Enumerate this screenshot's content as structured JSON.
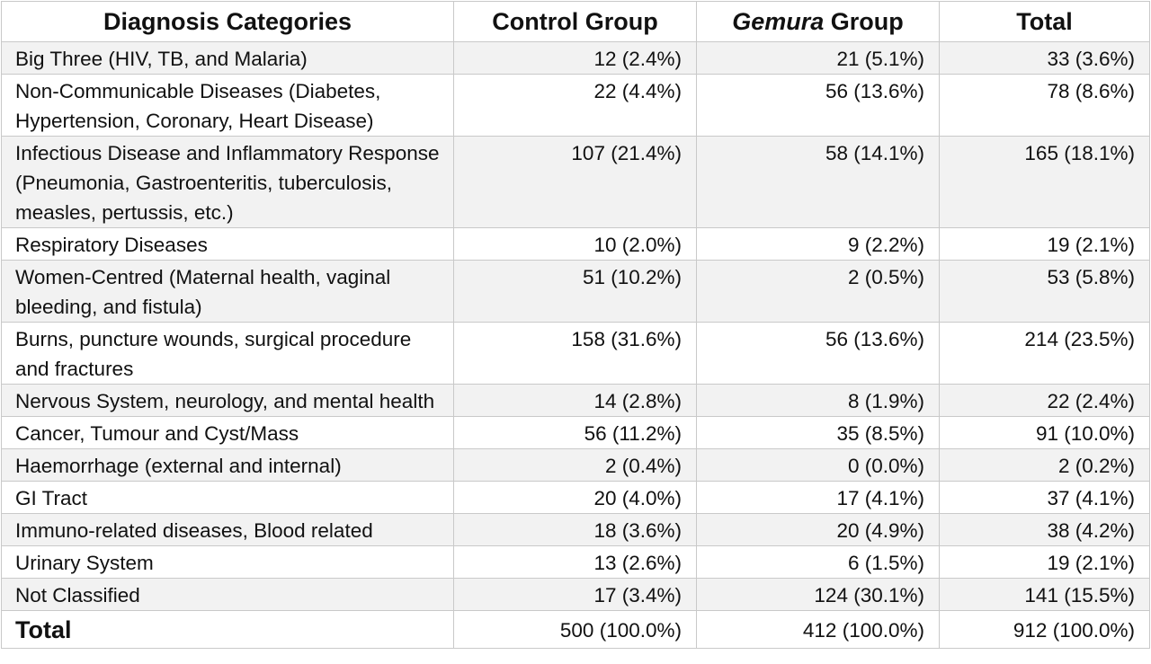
{
  "table": {
    "headers": {
      "category": "Diagnosis Categories",
      "control": "Control Group",
      "gemura_italic": "Gemura",
      "gemura_rest": " Group",
      "total": "Total"
    },
    "rows": [
      {
        "category": "Big Three (HIV, TB, and Malaria)",
        "control": "12 (2.4%)",
        "gemura": "21 (5.1%)",
        "total": "33 (3.6%)"
      },
      {
        "category": "Non-Communicable Diseases (Diabetes, Hypertension, Coronary, Heart Disease)",
        "control": "22 (4.4%)",
        "gemura": "56 (13.6%)",
        "total": "78 (8.6%)"
      },
      {
        "category": "Infectious Disease and Inflammatory Response (Pneumonia, Gastroenteritis, tuberculosis, measles, pertussis, etc.)",
        "control": "107 (21.4%)",
        "gemura": "58 (14.1%)",
        "total": "165 (18.1%)"
      },
      {
        "category": "Respiratory Diseases",
        "control": "10 (2.0%)",
        "gemura": "9 (2.2%)",
        "total": "19 (2.1%)"
      },
      {
        "category": "Women-Centred (Maternal health, vaginal bleeding, and fistula)",
        "control": "51 (10.2%)",
        "gemura": "2 (0.5%)",
        "total": "53 (5.8%)"
      },
      {
        "category": "Burns, puncture wounds, surgical procedure and fractures",
        "control": "158 (31.6%)",
        "gemura": "56 (13.6%)",
        "total": "214 (23.5%)"
      },
      {
        "category": "Nervous System, neurology, and mental health",
        "control": "14 (2.8%)",
        "gemura": "8 (1.9%)",
        "total": "22 (2.4%)"
      },
      {
        "category": "Cancer, Tumour and Cyst/Mass",
        "control": "56 (11.2%)",
        "gemura": "35 (8.5%)",
        "total": "91 (10.0%)"
      },
      {
        "category": "Haemorrhage (external and internal)",
        "control": "2 (0.4%)",
        "gemura": "0 (0.0%)",
        "total": "2 (0.2%)"
      },
      {
        "category": "GI Tract",
        "control": "20 (4.0%)",
        "gemura": "17 (4.1%)",
        "total": "37 (4.1%)"
      },
      {
        "category": "Immuno-related diseases, Blood related",
        "control": "18 (3.6%)",
        "gemura": "20 (4.9%)",
        "total": "38 (4.2%)"
      },
      {
        "category": "Urinary System",
        "control": "13 (2.6%)",
        "gemura": "6 (1.5%)",
        "total": "19 (2.1%)"
      },
      {
        "category": "Not Classified",
        "control": "17 (3.4%)",
        "gemura": "124 (30.1%)",
        "total": "141 (15.5%)"
      }
    ],
    "total_row": {
      "category": "Total",
      "control": "500 (100.0%)",
      "gemura": "412 (100.0%)",
      "total": "912 (100.0%)"
    }
  }
}
